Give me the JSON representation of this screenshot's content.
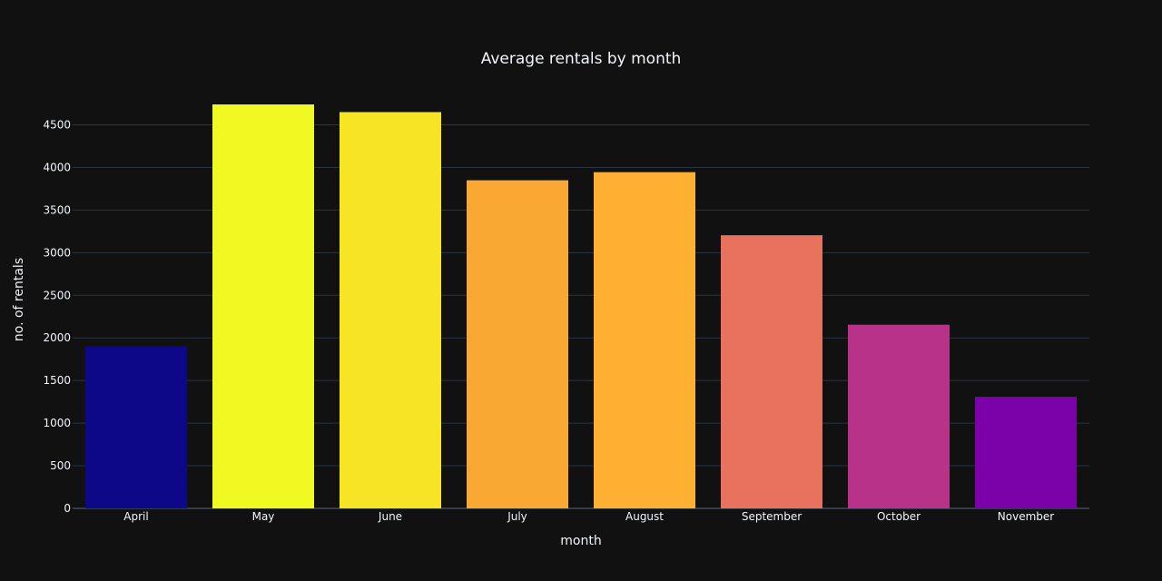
{
  "chart_data": {
    "type": "bar",
    "title": "Average rentals by month",
    "xlabel": "month",
    "ylabel": "no. of rentals",
    "categories": [
      "April",
      "May",
      "June",
      "July",
      "August",
      "September",
      "October",
      "November"
    ],
    "values": [
      1900,
      4740,
      4650,
      3850,
      3945,
      3205,
      2155,
      1310
    ],
    "colors": [
      "#0d0887",
      "#f0f921",
      "#f6e425",
      "#f9a834",
      "#fdb032",
      "#e8725d",
      "#b83289",
      "#7a02a8"
    ],
    "ylim": [
      0,
      4900
    ],
    "yticks": [
      0,
      500,
      1000,
      1500,
      2000,
      2500,
      3000,
      3500,
      4000,
      4500
    ],
    "grid": true,
    "legend": "none",
    "background": "#111111"
  }
}
